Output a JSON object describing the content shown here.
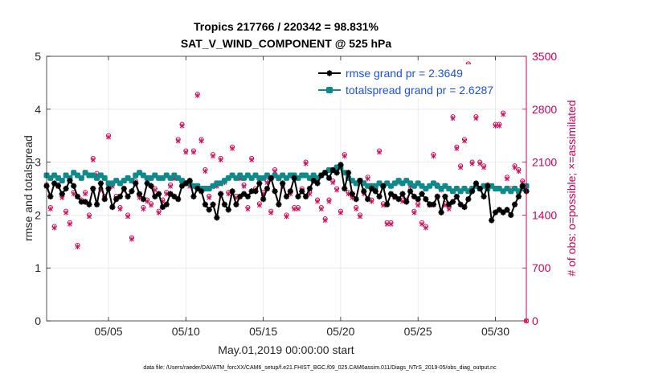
{
  "chart_data": {
    "type": "line",
    "title_line1": "Tropics 217766 / 220342 = 98.831%",
    "title_line2": "SAT_V_WIND_COMPONENT @ 525 hPa",
    "xlabel": "May.01,2019 00:00:00 start",
    "ylabel_left": "rmse and totalspread",
    "ylabel_right": "# of obs: o=possible; ×=assimilated",
    "footer": "data file: /Users/raeder/DAI/ATM_forcXX/CAM6_setup/f.e21.FHIST_BGC.f09_025.CAM6assim.011/Diags_NTrS_2019-05/obs_diag_output.nc",
    "xlim": [
      1.0,
      32.0
    ],
    "ylim_left": [
      0,
      5
    ],
    "ylim_right": [
      0,
      3500
    ],
    "xticks": [
      5,
      10,
      15,
      20,
      25,
      30
    ],
    "xtick_labels": [
      "05/05",
      "05/10",
      "05/15",
      "05/20",
      "05/25",
      "05/30"
    ],
    "yticks_left": [
      0,
      1,
      2,
      3,
      4,
      5
    ],
    "ytick_labels_left": [
      "0",
      "1",
      "2",
      "3",
      "4",
      "5"
    ],
    "yticks_right": [
      0,
      700,
      1400,
      2100,
      2800,
      3500
    ],
    "ytick_labels_right": [
      "0",
      "700",
      "1400",
      "2100",
      "2800",
      "3500"
    ],
    "grid": true,
    "legend_position": "top-right",
    "colors": {
      "rmse": "#000000",
      "spread": "#0e8a8a",
      "obs": "#cc0055",
      "title": "#000000",
      "legend_text": "#1f4fe0"
    },
    "series": [
      {
        "name": "rmse grand pr = 2.3649",
        "axis": "left",
        "x": [
          1.0,
          1.25,
          1.5,
          1.75,
          2.0,
          2.25,
          2.5,
          2.75,
          3.0,
          3.25,
          3.5,
          3.75,
          4.0,
          4.25,
          4.5,
          4.75,
          5.0,
          5.25,
          5.5,
          5.75,
          6.0,
          6.25,
          6.5,
          6.75,
          7.0,
          7.25,
          7.5,
          7.75,
          8.0,
          8.25,
          8.5,
          8.75,
          9.0,
          9.25,
          9.5,
          9.75,
          10.0,
          10.25,
          10.5,
          10.75,
          11.0,
          11.25,
          11.5,
          11.75,
          12.0,
          12.25,
          12.5,
          12.75,
          13.0,
          13.25,
          13.5,
          13.75,
          14.0,
          14.25,
          14.5,
          14.75,
          15.0,
          15.25,
          15.5,
          15.75,
          16.0,
          16.25,
          16.5,
          16.75,
          17.0,
          17.25,
          17.5,
          17.75,
          18.0,
          18.25,
          18.5,
          18.75,
          19.0,
          19.25,
          19.5,
          19.75,
          20.0,
          20.25,
          20.5,
          20.75,
          21.0,
          21.25,
          21.5,
          21.75,
          22.0,
          22.25,
          22.5,
          22.75,
          23.0,
          23.25,
          23.5,
          23.75,
          24.0,
          24.25,
          24.5,
          24.75,
          25.0,
          25.25,
          25.5,
          25.75,
          26.0,
          26.25,
          26.5,
          26.75,
          27.0,
          27.25,
          27.5,
          27.75,
          28.0,
          28.25,
          28.5,
          28.75,
          29.0,
          29.25,
          29.5,
          29.75,
          30.0,
          30.25,
          30.5,
          30.75,
          31.0,
          31.25,
          31.5,
          31.75,
          32.0
        ],
        "values": [
          2.55,
          2.35,
          2.6,
          2.55,
          2.4,
          2.5,
          2.65,
          2.55,
          2.35,
          2.25,
          2.25,
          2.2,
          2.5,
          2.2,
          2.6,
          2.3,
          2.5,
          2.15,
          2.3,
          2.35,
          2.5,
          2.35,
          2.45,
          2.6,
          2.4,
          2.3,
          2.6,
          2.55,
          2.35,
          2.4,
          2.15,
          2.2,
          2.4,
          2.35,
          2.3,
          2.55,
          2.6,
          2.65,
          2.35,
          2.5,
          2.45,
          2.2,
          2.1,
          2.2,
          1.95,
          2.4,
          2.2,
          2.1,
          2.45,
          2.2,
          2.35,
          2.4,
          2.35,
          2.45,
          2.45,
          2.6,
          2.3,
          2.5,
          2.7,
          2.45,
          2.2,
          2.6,
          2.35,
          2.45,
          2.7,
          2.35,
          2.45,
          2.35,
          2.5,
          2.65,
          2.6,
          2.75,
          2.8,
          2.7,
          2.85,
          2.8,
          2.95,
          2.5,
          2.8,
          2.4,
          2.3,
          2.65,
          2.45,
          2.3,
          2.5,
          2.45,
          2.35,
          2.55,
          2.2,
          2.4,
          2.35,
          2.3,
          2.4,
          2.25,
          2.45,
          2.35,
          2.3,
          2.4,
          2.3,
          2.2,
          2.2,
          2.35,
          2.05,
          2.35,
          2.2,
          2.25,
          2.35,
          2.2,
          2.15,
          2.3,
          2.45,
          2.6,
          2.5,
          2.35,
          2.55,
          1.9,
          2.05,
          2.1,
          2.05,
          2.1,
          2.0,
          2.2,
          2.35,
          2.55,
          2.45
        ]
      },
      {
        "name": "totalspread grand pr = 2.6287",
        "axis": "left",
        "x": [
          1.0,
          1.25,
          1.5,
          1.75,
          2.0,
          2.25,
          2.5,
          2.75,
          3.0,
          3.25,
          3.5,
          3.75,
          4.0,
          4.25,
          4.5,
          4.75,
          5.0,
          5.25,
          5.5,
          5.75,
          6.0,
          6.25,
          6.5,
          6.75,
          7.0,
          7.25,
          7.5,
          7.75,
          8.0,
          8.25,
          8.5,
          8.75,
          9.0,
          9.25,
          9.5,
          9.75,
          10.0,
          10.25,
          10.5,
          10.75,
          11.0,
          11.25,
          11.5,
          11.75,
          12.0,
          12.25,
          12.5,
          12.75,
          13.0,
          13.25,
          13.5,
          13.75,
          14.0,
          14.25,
          14.5,
          14.75,
          15.0,
          15.25,
          15.5,
          15.75,
          16.0,
          16.25,
          16.5,
          16.75,
          17.0,
          17.25,
          17.5,
          17.75,
          18.0,
          18.25,
          18.5,
          18.75,
          19.0,
          19.25,
          19.5,
          19.75,
          20.0,
          20.25,
          20.5,
          20.75,
          21.0,
          21.25,
          21.5,
          21.75,
          22.0,
          22.25,
          22.5,
          22.75,
          23.0,
          23.25,
          23.5,
          23.75,
          24.0,
          24.25,
          24.5,
          24.75,
          25.0,
          25.25,
          25.5,
          25.75,
          26.0,
          26.25,
          26.5,
          26.75,
          27.0,
          27.25,
          27.5,
          27.75,
          28.0,
          28.25,
          28.5,
          28.75,
          29.0,
          29.25,
          29.5,
          29.75,
          30.0,
          30.25,
          30.5,
          30.75,
          31.0,
          31.25,
          31.5,
          31.75,
          32.0
        ],
        "values": [
          2.75,
          2.7,
          2.75,
          2.7,
          2.65,
          2.75,
          2.7,
          2.8,
          2.75,
          2.7,
          2.8,
          2.75,
          2.75,
          2.7,
          2.75,
          2.7,
          2.6,
          2.6,
          2.65,
          2.6,
          2.65,
          2.7,
          2.65,
          2.75,
          2.8,
          2.75,
          2.7,
          2.7,
          2.75,
          2.7,
          2.7,
          2.75,
          2.7,
          2.75,
          2.7,
          2.65,
          2.6,
          2.6,
          2.55,
          2.55,
          2.5,
          2.5,
          2.5,
          2.55,
          2.6,
          2.6,
          2.65,
          2.7,
          2.75,
          2.7,
          2.75,
          2.7,
          2.75,
          2.7,
          2.75,
          2.7,
          2.7,
          2.75,
          2.7,
          2.75,
          2.7,
          2.75,
          2.7,
          2.75,
          2.75,
          2.7,
          2.75,
          2.75,
          2.7,
          2.75,
          2.7,
          2.75,
          2.8,
          2.85,
          2.85,
          2.9,
          2.9,
          2.8,
          2.7,
          2.65,
          2.6,
          2.65,
          2.6,
          2.55,
          2.55,
          2.55,
          2.6,
          2.55,
          2.6,
          2.55,
          2.6,
          2.65,
          2.6,
          2.65,
          2.6,
          2.55,
          2.6,
          2.55,
          2.5,
          2.55,
          2.6,
          2.55,
          2.5,
          2.55,
          2.5,
          2.45,
          2.5,
          2.45,
          2.5,
          2.45,
          2.5,
          2.55,
          2.5,
          2.55,
          2.5,
          2.55,
          2.5,
          2.5,
          2.45,
          2.5,
          2.45,
          2.5,
          2.45,
          2.5,
          2.55
        ]
      }
    ],
    "obs_possible": {
      "axis": "right",
      "x": [
        1.0,
        1.25,
        1.5,
        1.75,
        2.0,
        2.25,
        2.5,
        2.75,
        3.0,
        3.25,
        3.5,
        3.75,
        4.0,
        4.25,
        4.5,
        4.75,
        5.0,
        5.25,
        5.5,
        5.75,
        6.0,
        6.25,
        6.5,
        6.75,
        7.0,
        7.25,
        7.5,
        7.75,
        8.0,
        8.25,
        8.5,
        8.75,
        9.0,
        9.25,
        9.5,
        9.75,
        10.0,
        10.25,
        10.5,
        10.75,
        11.0,
        11.25,
        11.5,
        11.75,
        12.0,
        12.25,
        12.5,
        12.75,
        13.0,
        13.25,
        13.5,
        13.75,
        14.0,
        14.25,
        14.5,
        14.75,
        15.0,
        15.25,
        15.5,
        15.75,
        16.0,
        16.25,
        16.5,
        16.75,
        17.0,
        17.25,
        17.5,
        17.75,
        18.0,
        18.25,
        18.5,
        18.75,
        19.0,
        19.25,
        19.5,
        19.75,
        20.0,
        20.25,
        20.5,
        20.75,
        21.0,
        21.25,
        21.5,
        21.75,
        22.0,
        22.25,
        22.5,
        22.75,
        23.0,
        23.25,
        23.5,
        23.75,
        24.0,
        24.25,
        24.5,
        24.75,
        25.0,
        25.25,
        25.5,
        25.75,
        26.0,
        26.25,
        26.5,
        26.75,
        27.0,
        27.25,
        27.5,
        27.75,
        28.0,
        28.25,
        28.5,
        28.75,
        29.0,
        29.25,
        29.5,
        29.75,
        30.0,
        30.25,
        30.5,
        30.75,
        31.0,
        31.25,
        31.5,
        31.75,
        32.0
      ],
      "values": [
        1800,
        1500,
        1250,
        1800,
        1650,
        1450,
        1300,
        1700,
        1000,
        1600,
        1700,
        1400,
        2150,
        1950,
        1750,
        1650,
        2450,
        1800,
        1650,
        1500,
        1750,
        1400,
        1100,
        1850,
        1650,
        1500,
        1600,
        1550,
        1750,
        1450,
        1600,
        1700,
        1800,
        1900,
        2400,
        2600,
        2250,
        1800,
        2250,
        3000,
        2400,
        2000,
        1650,
        2200,
        1800,
        2150,
        1850,
        1700,
        2300,
        1650,
        1900,
        1800,
        1500,
        2150,
        1750,
        1550,
        1700,
        1850,
        1450,
        2000,
        1900,
        1800,
        1400,
        1700,
        1500,
        1500,
        1750,
        2100,
        1700,
        1900,
        1600,
        1500,
        1350,
        1600,
        1850,
        1750,
        1450,
        2200,
        1700,
        1650,
        1500,
        1400,
        1700,
        1900,
        1600,
        1750,
        2250,
        1550,
        1300,
        1300,
        1650,
        1850,
        1600,
        1600,
        1800,
        1450,
        1550,
        1300,
        1250,
        1550,
        2200,
        1800,
        1750,
        1550,
        1500,
        2700,
        2300,
        2050,
        2400,
        3400,
        2100,
        2700,
        2100,
        2050,
        1800,
        3250,
        2600,
        2600,
        2750,
        1900,
        1750,
        2050,
        2000,
        1850,
        0
      ]
    },
    "obs_assimilated": {
      "axis": "right",
      "x": [
        1.0,
        1.25,
        1.5,
        1.75,
        2.0,
        2.25,
        2.5,
        2.75,
        3.0,
        3.25,
        3.5,
        3.75,
        4.0,
        4.25,
        4.5,
        4.75,
        5.0,
        5.25,
        5.5,
        5.75,
        6.0,
        6.25,
        6.5,
        6.75,
        7.0,
        7.25,
        7.5,
        7.75,
        8.0,
        8.25,
        8.5,
        8.75,
        9.0,
        9.25,
        9.5,
        9.75,
        10.0,
        10.25,
        10.5,
        10.75,
        11.0,
        11.25,
        11.5,
        11.75,
        12.0,
        12.25,
        12.5,
        12.75,
        13.0,
        13.25,
        13.5,
        13.75,
        14.0,
        14.25,
        14.5,
        14.75,
        15.0,
        15.25,
        15.5,
        15.75,
        16.0,
        16.25,
        16.5,
        16.75,
        17.0,
        17.25,
        17.5,
        17.75,
        18.0,
        18.25,
        18.5,
        18.75,
        19.0,
        19.25,
        19.5,
        19.75,
        20.0,
        20.25,
        20.5,
        20.75,
        21.0,
        21.25,
        21.5,
        21.75,
        22.0,
        22.25,
        22.5,
        22.75,
        23.0,
        23.25,
        23.5,
        23.75,
        24.0,
        24.25,
        24.5,
        24.75,
        25.0,
        25.25,
        25.5,
        25.75,
        26.0,
        26.25,
        26.5,
        26.75,
        27.0,
        27.25,
        27.5,
        27.75,
        28.0,
        28.25,
        28.5,
        28.75,
        29.0,
        29.25,
        29.5,
        29.75,
        30.0,
        30.25,
        30.5,
        30.75,
        31.0,
        31.25,
        31.5,
        31.75,
        32.0
      ],
      "values": [
        1780,
        1480,
        1230,
        1780,
        1630,
        1430,
        1280,
        1680,
        980,
        1580,
        1680,
        1380,
        2130,
        1930,
        1730,
        1630,
        2430,
        1780,
        1630,
        1480,
        1730,
        1380,
        1080,
        1830,
        1630,
        1480,
        1580,
        1530,
        1730,
        1430,
        1580,
        1680,
        1780,
        1880,
        2380,
        2580,
        2230,
        1780,
        2230,
        2980,
        2380,
        1980,
        1630,
        2180,
        1780,
        2130,
        1830,
        1680,
        2280,
        1630,
        1880,
        1780,
        1480,
        2130,
        1730,
        1530,
        1680,
        1830,
        1430,
        1980,
        1880,
        1780,
        1380,
        1680,
        1480,
        1480,
        1730,
        2080,
        1680,
        1880,
        1580,
        1480,
        1330,
        1580,
        1830,
        1730,
        1430,
        2180,
        1680,
        1630,
        1480,
        1380,
        1680,
        1880,
        1580,
        1730,
        2230,
        1530,
        1280,
        1280,
        1630,
        1830,
        1580,
        1580,
        1780,
        1430,
        1530,
        1280,
        1230,
        1530,
        2180,
        1780,
        1730,
        1530,
        1480,
        2680,
        2280,
        2030,
        2380,
        3380,
        2080,
        2680,
        2080,
        2030,
        1780,
        3230,
        2580,
        2580,
        2730,
        1880,
        1730,
        2030,
        1980,
        1830,
        0
      ]
    }
  }
}
